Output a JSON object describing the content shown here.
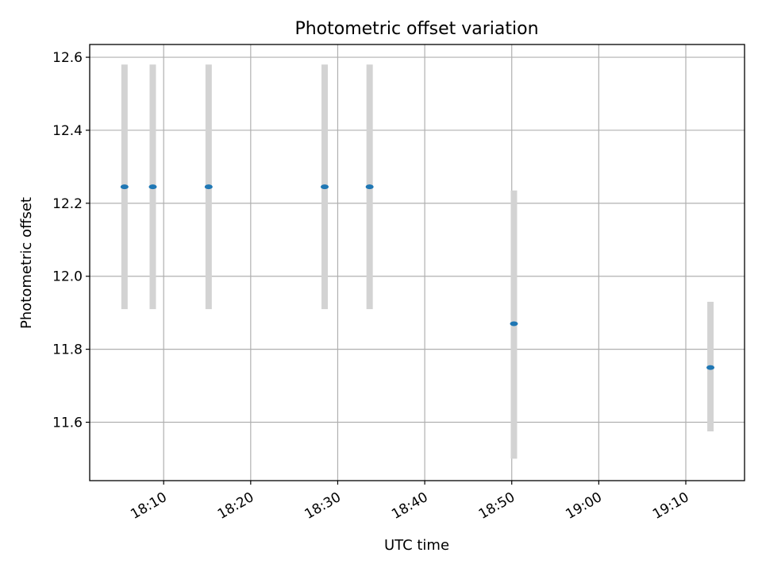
{
  "chart_data": {
    "type": "scatter",
    "title": "Photometric offset variation",
    "xlabel": "UTC time",
    "ylabel": "Photometric offset",
    "x_ticks": [
      "18:10",
      "18:20",
      "18:30",
      "18:40",
      "18:50",
      "19:00",
      "19:10"
    ],
    "y_ticks": [
      "11.6",
      "11.8",
      "12.0",
      "12.2",
      "12.4",
      "12.6"
    ],
    "x_range": [
      "18:01:30",
      "19:16:45"
    ],
    "ylim": [
      11.44,
      12.635
    ],
    "grid": true,
    "points": [
      {
        "x": "18:05:30",
        "y": 12.245,
        "err_low": 11.91,
        "err_high": 12.58
      },
      {
        "x": "18:08:45",
        "y": 12.245,
        "err_low": 11.91,
        "err_high": 12.58
      },
      {
        "x": "18:15:10",
        "y": 12.245,
        "err_low": 11.91,
        "err_high": 12.58
      },
      {
        "x": "18:28:30",
        "y": 12.245,
        "err_low": 11.91,
        "err_high": 12.58
      },
      {
        "x": "18:33:40",
        "y": 12.245,
        "err_low": 11.91,
        "err_high": 12.58
      },
      {
        "x": "18:50:15",
        "y": 11.87,
        "err_low": 11.5,
        "err_high": 12.235
      },
      {
        "x": "19:12:50",
        "y": 11.75,
        "err_low": 11.575,
        "err_high": 11.93
      }
    ],
    "colors": {
      "marker": "#1f77b4",
      "errorbar": "#d3d3d3",
      "grid": "#b0b0b0"
    }
  }
}
